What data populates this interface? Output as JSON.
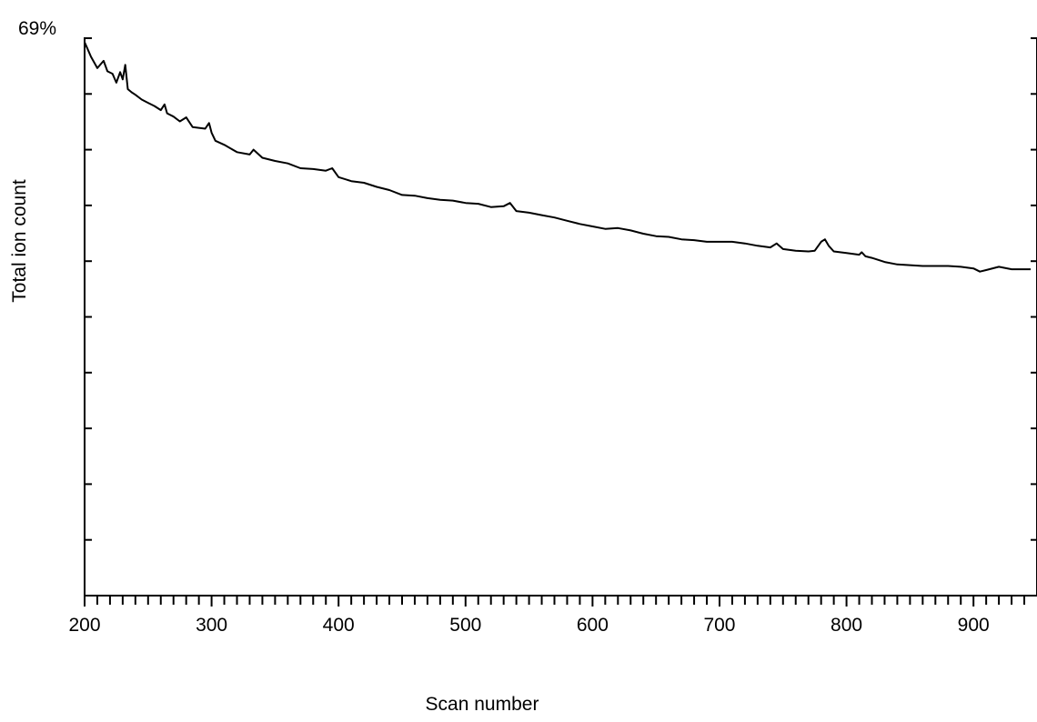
{
  "chart_data": {
    "type": "line",
    "title": "",
    "xlabel": "Scan number",
    "ylabel": "Total ion count",
    "y_max_label": "69%",
    "xlim": [
      200,
      945
    ],
    "ylim": [
      0,
      69
    ],
    "x_ticks": [
      200,
      300,
      400,
      500,
      600,
      700,
      800,
      900
    ],
    "x_minor_step": 10,
    "y_tick_count": 10,
    "grid": false,
    "legend": "none",
    "line_color": "#000000",
    "series": [
      {
        "x": [
          200,
          202,
          205,
          210,
          215,
          218,
          222,
          225,
          228,
          230,
          232,
          234,
          237,
          240,
          245,
          250,
          255,
          260,
          263,
          265,
          270,
          275,
          280,
          285,
          290,
          295,
          298,
          300,
          303,
          310,
          320,
          330,
          333,
          340,
          350,
          360,
          370,
          380,
          390,
          395,
          400,
          410,
          420,
          430,
          440,
          450,
          460,
          470,
          480,
          490,
          500,
          510,
          520,
          530,
          535,
          540,
          550,
          560,
          570,
          580,
          590,
          600,
          610,
          620,
          630,
          640,
          650,
          660,
          670,
          680,
          690,
          700,
          710,
          720,
          730,
          740,
          745,
          750,
          760,
          770,
          775,
          780,
          783,
          786,
          790,
          800,
          810,
          812,
          815,
          820,
          830,
          840,
          850,
          860,
          870,
          880,
          890,
          900,
          905,
          910,
          920,
          930,
          945
        ],
        "y": [
          68.5,
          67.8,
          66.7,
          65.3,
          66.2,
          64.9,
          64.6,
          63.5,
          64.8,
          63.9,
          65.7,
          62.7,
          62.3,
          62.0,
          61.4,
          61.0,
          60.6,
          60.1,
          60.8,
          59.7,
          59.3,
          58.7,
          59.2,
          58.0,
          57.9,
          57.8,
          58.5,
          57.3,
          56.3,
          55.8,
          54.9,
          54.6,
          55.2,
          54.2,
          53.8,
          53.5,
          52.9,
          52.8,
          52.6,
          52.9,
          51.8,
          51.3,
          51.1,
          50.6,
          50.2,
          49.6,
          49.5,
          49.2,
          49.0,
          48.9,
          48.6,
          48.5,
          48.1,
          48.2,
          48.6,
          47.6,
          47.4,
          47.1,
          46.8,
          46.4,
          46.0,
          45.7,
          45.4,
          45.5,
          45.2,
          44.8,
          44.5,
          44.4,
          44.1,
          44.0,
          43.8,
          43.8,
          43.8,
          43.6,
          43.3,
          43.1,
          43.6,
          42.9,
          42.7,
          42.6,
          42.7,
          43.8,
          44.1,
          43.3,
          42.6,
          42.4,
          42.2,
          42.5,
          42.0,
          41.8,
          41.3,
          41.0,
          40.9,
          40.8,
          40.8,
          40.8,
          40.7,
          40.5,
          40.1,
          40.3,
          40.7,
          40.4,
          40.4
        ]
      }
    ]
  }
}
